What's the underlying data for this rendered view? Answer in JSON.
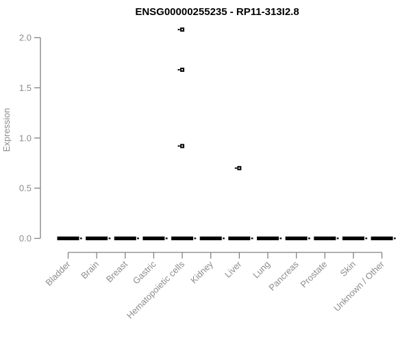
{
  "chart_data": {
    "type": "boxplot",
    "title": "ENSG00000255235 - RP11-313I2.8",
    "xlabel": "",
    "ylabel": "Expression",
    "ylim": [
      0.0,
      2.0
    ],
    "yticks": [
      "0.0",
      "0.5",
      "1.0",
      "1.5",
      "2.0"
    ],
    "x_tick_rotation": 45,
    "grid": false,
    "legend": "none",
    "categories": [
      "Bladder",
      "Brain",
      "Breast",
      "Gastric",
      "Hematopoietic cells",
      "Kidney",
      "Liver",
      "Lung",
      "Pancreas",
      "Prostate",
      "Skin",
      "Unknown / Other"
    ],
    "boxes": [
      {
        "category": "Bladder",
        "min": 0,
        "q1": 0,
        "median": 0,
        "q3": 0,
        "max": 0,
        "outliers": []
      },
      {
        "category": "Brain",
        "min": 0,
        "q1": 0,
        "median": 0,
        "q3": 0,
        "max": 0,
        "outliers": []
      },
      {
        "category": "Breast",
        "min": 0,
        "q1": 0,
        "median": 0,
        "q3": 0,
        "max": 0,
        "outliers": []
      },
      {
        "category": "Gastric",
        "min": 0,
        "q1": 0,
        "median": 0,
        "q3": 0,
        "max": 0,
        "outliers": []
      },
      {
        "category": "Hematopoietic cells",
        "min": 0,
        "q1": 0,
        "median": 0,
        "q3": 0,
        "max": 0,
        "outliers": [
          0.92,
          1.68,
          2.08
        ]
      },
      {
        "category": "Kidney",
        "min": 0,
        "q1": 0,
        "median": 0,
        "q3": 0,
        "max": 0,
        "outliers": []
      },
      {
        "category": "Liver",
        "min": 0,
        "q1": 0,
        "median": 0,
        "q3": 0,
        "max": 0,
        "outliers": [
          0.7
        ]
      },
      {
        "category": "Lung",
        "min": 0,
        "q1": 0,
        "median": 0,
        "q3": 0,
        "max": 0,
        "outliers": []
      },
      {
        "category": "Pancreas",
        "min": 0,
        "q1": 0,
        "median": 0,
        "q3": 0,
        "max": 0,
        "outliers": []
      },
      {
        "category": "Prostate",
        "min": 0,
        "q1": 0,
        "median": 0,
        "q3": 0,
        "max": 0,
        "outliers": []
      },
      {
        "category": "Skin",
        "min": 0,
        "q1": 0,
        "median": 0,
        "q3": 0,
        "max": 0,
        "outliers": []
      },
      {
        "category": "Unknown / Other",
        "min": 0,
        "q1": 0,
        "median": 0,
        "q3": 0,
        "max": 0,
        "outliers": []
      }
    ],
    "colors": {
      "box_fill": "#000000",
      "axis": "#808080",
      "tick_text": "#8c8c8c",
      "title_text": "#000000",
      "background": "#ffffff"
    }
  }
}
